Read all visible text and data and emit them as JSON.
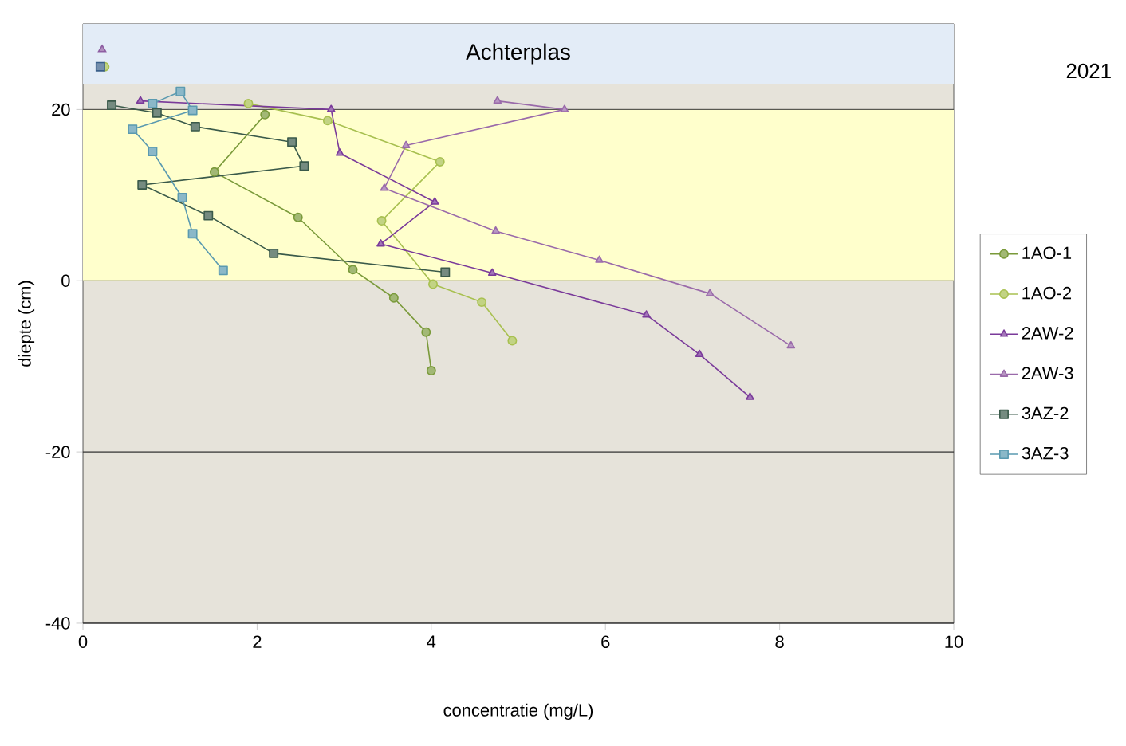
{
  "chart_data": {
    "type": "line",
    "xlabel": "concentratie (mg/L)",
    "ylabel": "diepte (cm)",
    "legend_title": "2021",
    "xlim": [
      0,
      10
    ],
    "xticks": [
      0,
      2,
      4,
      6,
      8,
      10
    ],
    "ylim": [
      -40,
      30
    ],
    "yticks": [
      -40,
      -20,
      0,
      20
    ],
    "grid": "y",
    "legend": "right",
    "bands": [
      {
        "axis": "y",
        "from": 0,
        "to": 20,
        "color": "#ffffcc"
      },
      {
        "axis": "y",
        "from": 23,
        "to": 30,
        "label": "Achterplas",
        "color": "#e3ecf7"
      }
    ],
    "series": [
      {
        "name": "1AO-1",
        "color": "#7a9a3a",
        "marker": "circle",
        "x": [
          2.09,
          1.51,
          2.47,
          3.1,
          3.57,
          3.94,
          4.0
        ],
        "values": [
          19.4,
          12.7,
          7.4,
          1.3,
          -2.0,
          -6.0,
          -10.5
        ]
      },
      {
        "name": "1AO-2",
        "color": "#a8c050",
        "marker": "circle",
        "x": [
          1.9,
          2.81,
          4.1,
          3.43,
          4.02,
          4.58,
          4.93
        ],
        "values": [
          20.7,
          18.7,
          13.9,
          7.0,
          -0.4,
          -2.5,
          -7.0
        ]
      },
      {
        "name": "2AW-2",
        "color": "#7a3a9a",
        "marker": "triangle",
        "x": [
          0.66,
          2.85,
          2.95,
          4.04,
          3.42,
          4.7,
          6.47,
          7.08,
          7.66
        ],
        "values": [
          21.0,
          20.0,
          14.9,
          9.2,
          4.3,
          0.9,
          -4.0,
          -8.6,
          -13.6
        ]
      },
      {
        "name": "2AW-3",
        "color": "#9a6aaa",
        "marker": "triangle",
        "x": [
          4.76,
          5.53,
          3.71,
          3.46,
          4.74,
          5.93,
          7.2,
          8.13
        ],
        "values": [
          21.0,
          20.0,
          15.8,
          10.8,
          5.8,
          2.4,
          -1.5,
          -7.6
        ]
      },
      {
        "name": "3AZ-2",
        "color": "#3a5a4a",
        "marker": "square",
        "x": [
          0.33,
          0.85,
          1.29,
          2.4,
          2.54,
          0.68,
          1.44,
          2.19,
          4.16
        ],
        "values": [
          20.5,
          19.6,
          18.0,
          16.2,
          13.4,
          11.2,
          7.6,
          3.2,
          1.0
        ]
      },
      {
        "name": "3AZ-3",
        "color": "#5a9ab0",
        "marker": "square",
        "x": [
          0.8,
          1.12,
          1.26,
          0.57,
          0.8,
          1.14,
          1.26,
          1.61
        ],
        "values": [
          20.7,
          22.1,
          19.9,
          17.7,
          15.1,
          9.7,
          5.5,
          1.2
        ]
      },
      {
        "type": "scatter",
        "color": "#8e5ea2",
        "marker": "triangle",
        "x": [
          0.22
        ],
        "values": [
          27.0
        ]
      },
      {
        "type": "scatter",
        "color": "#a8c050",
        "marker": "circle",
        "x": [
          0.25
        ],
        "values": [
          25.0
        ]
      },
      {
        "type": "scatter",
        "color": "#3a5f8a",
        "marker": "square",
        "x": [
          0.2
        ],
        "values": [
          25.0
        ]
      }
    ]
  }
}
